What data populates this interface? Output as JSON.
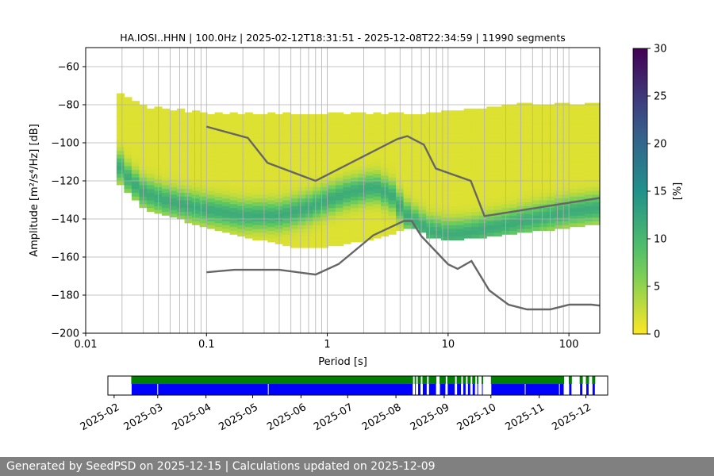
{
  "chart_data": {
    "type": "heatmap",
    "title": "HA.IOSI..HHN | 100.0Hz | 2025-02-12T18:31:51 - 2025-12-08T22:34:59 | 11990 segments",
    "xlabel": "Period [s]",
    "ylabel": "Amplitude [m²/s⁴/Hz] [dB]",
    "xscale": "log",
    "xlim": [
      0.01,
      180
    ],
    "ylim": [
      -200,
      -50
    ],
    "x_ticks": [
      0.01,
      0.1,
      1,
      10,
      100
    ],
    "x_tick_labels": [
      "0.01",
      "0.1",
      "1",
      "10",
      "100"
    ],
    "y_ticks": [
      -200,
      -180,
      -160,
      -140,
      -120,
      -100,
      -80,
      -60
    ],
    "y_tick_labels": [
      "−200",
      "−180",
      "−160",
      "−140",
      "−120",
      "−100",
      "−80",
      "−60"
    ],
    "grid": true,
    "colorbar": {
      "label": "[%]",
      "colormap": "viridis_r",
      "range": [
        0,
        30
      ],
      "ticks": [
        0,
        5,
        10,
        15,
        20,
        25,
        30
      ],
      "tick_labels": [
        "0",
        "5",
        "10",
        "15",
        "20",
        "25",
        "30"
      ]
    },
    "mode_curve": {
      "period": [
        0.018,
        0.022,
        0.03,
        0.05,
        0.1,
        0.2,
        0.4,
        0.7,
        1.0,
        1.5,
        2.5,
        3.5,
        4.5,
        5.5,
        7,
        10,
        15,
        25,
        50,
        100,
        180
      ],
      "db": [
        -110,
        -118,
        -126,
        -131,
        -135,
        -138,
        -138,
        -134,
        -130,
        -126,
        -123,
        -128,
        -138,
        -142,
        -146,
        -148,
        -147,
        -144,
        -140,
        -136,
        -134
      ]
    },
    "density_envelope": {
      "period": [
        0.018,
        0.03,
        0.1,
        0.3,
        0.5,
        1.0,
        2.0,
        3.5,
        5.0,
        7.0,
        10,
        20,
        50,
        100,
        180
      ],
      "upper_db": [
        -75,
        -82,
        -85,
        -85,
        -85,
        -85,
        -85,
        -85,
        -85,
        -85,
        -84,
        -82,
        -80,
        -80,
        -80
      ],
      "lower_db": [
        -120,
        -135,
        -145,
        -152,
        -155,
        -155,
        -152,
        -148,
        -145,
        -150,
        -152,
        -150,
        -147,
        -145,
        -143
      ]
    },
    "nhnm": {
      "period": [
        0.1,
        0.22,
        0.32,
        0.8,
        3.8,
        4.6,
        6.3,
        7.9,
        15.4,
        20,
        354.8
      ],
      "db": [
        -91.5,
        -97.4,
        -110.5,
        -120,
        -98,
        -96.5,
        -101,
        -113.5,
        -120,
        -138.5,
        -126
      ]
    },
    "nlnm": {
      "period": [
        0.1,
        0.17,
        0.4,
        0.8,
        1.24,
        2.4,
        4.3,
        5,
        6,
        10,
        12,
        15.6,
        21.9,
        31.6,
        45,
        70,
        101,
        154,
        180
      ],
      "db": [
        -168,
        -166.7,
        -166.7,
        -169.2,
        -163.7,
        -148.6,
        -141.1,
        -141.1,
        -149,
        -163.8,
        -166.2,
        -162.1,
        -177.5,
        -185,
        -187.5,
        -187.5,
        -185,
        -185,
        -185.5
      ]
    },
    "timeline": {
      "date_labels": [
        "2025-02",
        "2025-03",
        "2025-04",
        "2025-05",
        "2025-06",
        "2025-07",
        "2025-08",
        "2025-09",
        "2025-10",
        "2025-11",
        "2025-12"
      ],
      "date_range": [
        "2025-01-28",
        "2025-12-15"
      ],
      "availability_color": "#008000",
      "psd_color": "#0000ff",
      "availability_intervals": [
        [
          "2025-02-12",
          "2025-08-12"
        ],
        [
          "2025-08-13",
          "2025-08-14"
        ],
        [
          "2025-08-15",
          "2025-08-17"
        ],
        [
          "2025-08-18",
          "2025-08-21"
        ],
        [
          "2025-08-22",
          "2025-08-27"
        ],
        [
          "2025-08-29",
          "2025-09-02"
        ],
        [
          "2025-09-03",
          "2025-09-08"
        ],
        [
          "2025-09-09",
          "2025-09-12"
        ],
        [
          "2025-09-13",
          "2025-09-15"
        ],
        [
          "2025-09-16",
          "2025-09-18"
        ],
        [
          "2025-09-19",
          "2025-09-21"
        ],
        [
          "2025-09-22",
          "2025-09-23"
        ],
        [
          "2025-09-25",
          "2025-09-26"
        ],
        [
          "2025-10-01",
          "2025-11-17"
        ],
        [
          "2025-11-20",
          "2025-11-22"
        ],
        [
          "2025-11-27",
          "2025-11-29"
        ],
        [
          "2025-12-01",
          "2025-12-03"
        ],
        [
          "2025-12-05",
          "2025-12-07"
        ]
      ],
      "psd_intervals": [
        [
          "2025-02-12",
          "2025-03-01"
        ],
        [
          "2025-03-01",
          "2025-05-11"
        ],
        [
          "2025-05-11",
          "2025-08-12"
        ],
        [
          "2025-08-13",
          "2025-08-14"
        ],
        [
          "2025-08-15",
          "2025-08-17"
        ],
        [
          "2025-08-18",
          "2025-08-21"
        ],
        [
          "2025-08-22",
          "2025-08-27"
        ],
        [
          "2025-08-29",
          "2025-09-02"
        ],
        [
          "2025-09-03",
          "2025-09-08"
        ],
        [
          "2025-09-09",
          "2025-09-12"
        ],
        [
          "2025-09-13",
          "2025-09-15"
        ],
        [
          "2025-09-16",
          "2025-09-18"
        ],
        [
          "2025-09-19",
          "2025-09-21"
        ],
        [
          "2025-09-22",
          "2025-09-23"
        ],
        [
          "2025-09-25",
          "2025-09-26"
        ],
        [
          "2025-10-01",
          "2025-10-23"
        ],
        [
          "2025-10-23",
          "2025-11-14"
        ],
        [
          "2025-11-14",
          "2025-11-17"
        ],
        [
          "2025-11-20",
          "2025-11-22"
        ],
        [
          "2025-11-27",
          "2025-11-29"
        ],
        [
          "2025-12-01",
          "2025-12-03"
        ],
        [
          "2025-12-05",
          "2025-12-07"
        ]
      ]
    }
  },
  "footer": {
    "text": "Generated by SeedPSD on 2025-12-15 | Calculations updated on 2025-12-09"
  }
}
